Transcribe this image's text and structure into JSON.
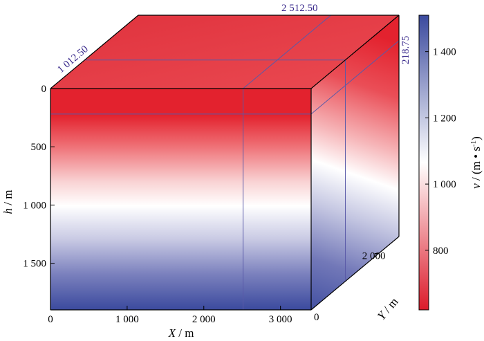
{
  "chart_data": {
    "type": "heatmap",
    "subtype": "3d-velocity-volume",
    "title": "",
    "x_axis": {
      "label_var": "X",
      "label_unit": " / m",
      "range": [
        0,
        3400
      ],
      "ticks": [
        0,
        1000,
        2000,
        3000
      ],
      "tick_labels": [
        "0",
        "1 000",
        "2 000",
        "3 000"
      ]
    },
    "y_axis": {
      "label_var": "Y",
      "label_unit": " / m",
      "range": [
        0,
        2600
      ],
      "ticks": [
        0,
        2000
      ],
      "tick_labels": [
        "0",
        "2 000"
      ]
    },
    "h_axis": {
      "label_var": "h",
      "label_unit": " / m",
      "range": [
        0,
        1900
      ],
      "ticks": [
        0,
        500,
        1000,
        1500
      ],
      "tick_labels": [
        "0",
        "500",
        "1 000",
        "1 500"
      ]
    },
    "colorbar": {
      "label_var": "v",
      "label_unit_pre": " / (m • s",
      "label_unit_sup": "-1",
      "label_unit_post": ")",
      "range": [
        620,
        1510
      ],
      "ticks": [
        800,
        1000,
        1200,
        1400
      ],
      "tick_labels": [
        "800",
        "1 000",
        "1 200",
        "1 400"
      ],
      "colormap": [
        "#dc1a2a",
        "#ffffff",
        "#3b4a9e"
      ]
    },
    "slices": {
      "x_value": 2512.5,
      "x_label": "2 512.50",
      "y_value": 1012.5,
      "y_label": "1 012.50",
      "h_value": 218.75,
      "h_label": "218.75"
    },
    "colors": {
      "slice_line": "#5a5aa8",
      "annotation": "#3a2a8c",
      "axis": "#000000"
    }
  }
}
